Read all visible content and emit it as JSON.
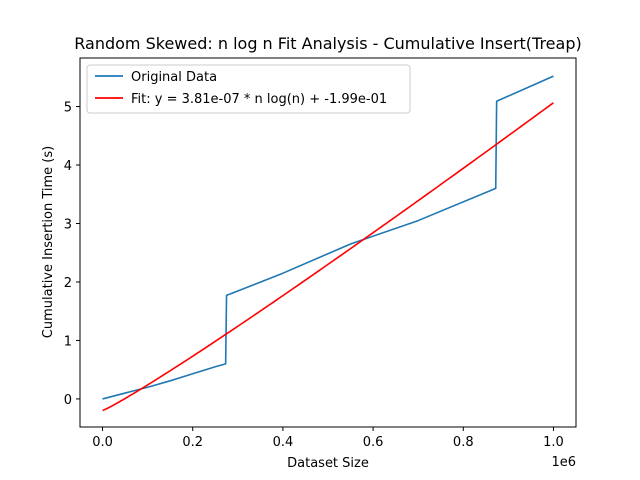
{
  "chart_data": {
    "type": "line",
    "title": "Random Skewed: n log n Fit Analysis - Cumulative Insert(Treap)",
    "xlabel": "Dataset Size",
    "ylabel": "Cumulative Insertion Time (s)",
    "x_offset_label": "1e6",
    "xlim": [
      -50000,
      1050000
    ],
    "ylim": [
      -0.48,
      5.83
    ],
    "xticks": [
      0,
      200000,
      400000,
      600000,
      800000,
      1000000
    ],
    "xtick_labels": [
      "0.0",
      "0.2",
      "0.4",
      "0.6",
      "0.8",
      "1.0"
    ],
    "yticks": [
      0,
      1,
      2,
      3,
      4,
      5
    ],
    "ytick_labels": [
      "0",
      "1",
      "2",
      "3",
      "4",
      "5"
    ],
    "grid": false,
    "legend_position": "top-left",
    "series": [
      {
        "name": "Original Data",
        "color": "#1f77b4",
        "x": [
          0,
          50000,
          100000,
          150000,
          200000,
          250000,
          273000,
          275000,
          400000,
          550000,
          700000,
          872000,
          874000,
          1000000
        ],
        "y": [
          0.0,
          0.1,
          0.2,
          0.31,
          0.43,
          0.55,
          0.6,
          1.77,
          2.15,
          2.65,
          3.05,
          3.6,
          5.09,
          5.52
        ]
      },
      {
        "name": "Fit: y = 3.81e-07 * n log(n) + -1.99e-01",
        "color": "#ff0000",
        "fit": {
          "a": 3.81e-07,
          "b": -0.199
        }
      }
    ]
  }
}
